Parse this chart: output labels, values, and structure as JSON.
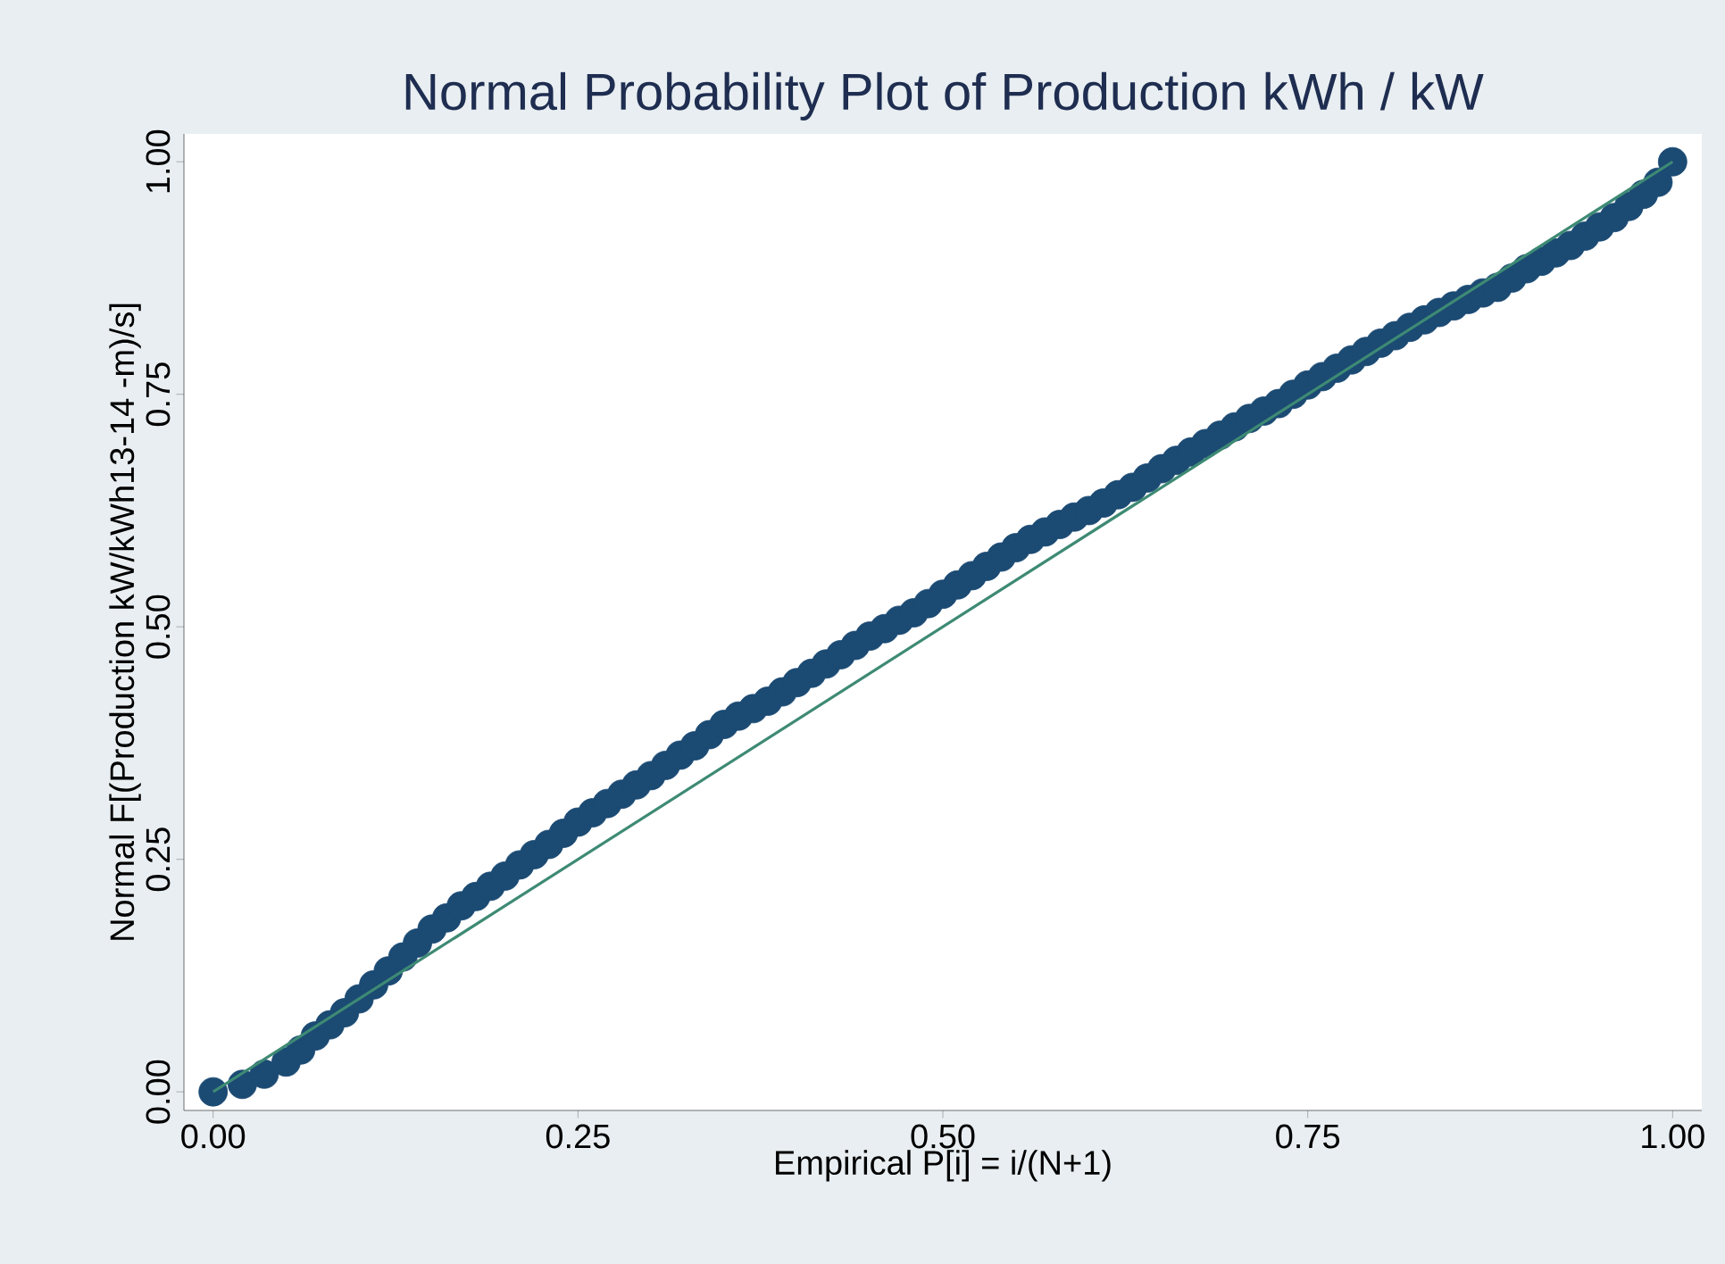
{
  "chart_data": {
    "type": "scatter",
    "title": "Normal Probability Plot of Production kWh / kW",
    "xlabel": "Empirical P[i] = i/(N+1)",
    "ylabel": "Normal F[(Production kW/kWh13-14 -m)/s]",
    "xlim": [
      -0.02,
      1.02
    ],
    "ylim": [
      -0.02,
      1.03
    ],
    "xticks": [
      {
        "value": 0,
        "label": "0.00"
      },
      {
        "value": 0.25,
        "label": "0.25"
      },
      {
        "value": 0.5,
        "label": "0.50"
      },
      {
        "value": 0.75,
        "label": "0.75"
      },
      {
        "value": 1,
        "label": "1.00"
      }
    ],
    "yticks": [
      {
        "value": 0,
        "label": "0.00"
      },
      {
        "value": 0.25,
        "label": "0.25"
      },
      {
        "value": 0.5,
        "label": "0.50"
      },
      {
        "value": 0.75,
        "label": "0.75"
      },
      {
        "value": 1,
        "label": "1.00"
      }
    ],
    "grid": false,
    "series": [
      {
        "color": "#1b4a73",
        "marker": "circle",
        "x": [
          0,
          0.02,
          0.035,
          0.05,
          0.06,
          0.07,
          0.08,
          0.09,
          0.1,
          0.11,
          0.12,
          0.13,
          0.14,
          0.15,
          0.16,
          0.17,
          0.18,
          0.19,
          0.2,
          0.21,
          0.22,
          0.23,
          0.24,
          0.25,
          0.26,
          0.27,
          0.28,
          0.29,
          0.3,
          0.31,
          0.32,
          0.33,
          0.34,
          0.35,
          0.36,
          0.37,
          0.38,
          0.39,
          0.4,
          0.41,
          0.42,
          0.43,
          0.44,
          0.45,
          0.46,
          0.47,
          0.48,
          0.49,
          0.5,
          0.51,
          0.52,
          0.53,
          0.54,
          0.55,
          0.56,
          0.57,
          0.58,
          0.59,
          0.6,
          0.61,
          0.62,
          0.63,
          0.64,
          0.65,
          0.66,
          0.67,
          0.68,
          0.69,
          0.7,
          0.71,
          0.72,
          0.73,
          0.74,
          0.75,
          0.76,
          0.77,
          0.78,
          0.79,
          0.8,
          0.81,
          0.82,
          0.83,
          0.84,
          0.85,
          0.86,
          0.87,
          0.88,
          0.89,
          0.9,
          0.91,
          0.92,
          0.93,
          0.94,
          0.95,
          0.96,
          0.97,
          0.98,
          0.99,
          1.0
        ],
        "values": [
          0,
          0.008,
          0.019,
          0.032,
          0.045,
          0.06,
          0.072,
          0.085,
          0.1,
          0.115,
          0.13,
          0.145,
          0.16,
          0.175,
          0.187,
          0.2,
          0.21,
          0.221,
          0.232,
          0.244,
          0.255,
          0.266,
          0.278,
          0.29,
          0.3,
          0.31,
          0.32,
          0.33,
          0.34,
          0.351,
          0.362,
          0.372,
          0.384,
          0.395,
          0.404,
          0.412,
          0.42,
          0.43,
          0.44,
          0.45,
          0.46,
          0.47,
          0.48,
          0.49,
          0.498,
          0.507,
          0.515,
          0.525,
          0.535,
          0.545,
          0.555,
          0.565,
          0.575,
          0.585,
          0.594,
          0.602,
          0.61,
          0.618,
          0.625,
          0.633,
          0.642,
          0.65,
          0.66,
          0.67,
          0.679,
          0.688,
          0.697,
          0.706,
          0.715,
          0.724,
          0.732,
          0.74,
          0.75,
          0.76,
          0.769,
          0.778,
          0.787,
          0.796,
          0.805,
          0.813,
          0.822,
          0.83,
          0.838,
          0.845,
          0.852,
          0.859,
          0.865,
          0.875,
          0.885,
          0.893,
          0.902,
          0.91,
          0.92,
          0.93,
          0.94,
          0.952,
          0.965,
          0.978,
          1.0
        ]
      },
      {
        "type": "line",
        "color": "#3e8a74",
        "x": [
          0,
          1
        ],
        "values": [
          0,
          1
        ],
        "marker": "none"
      }
    ]
  }
}
